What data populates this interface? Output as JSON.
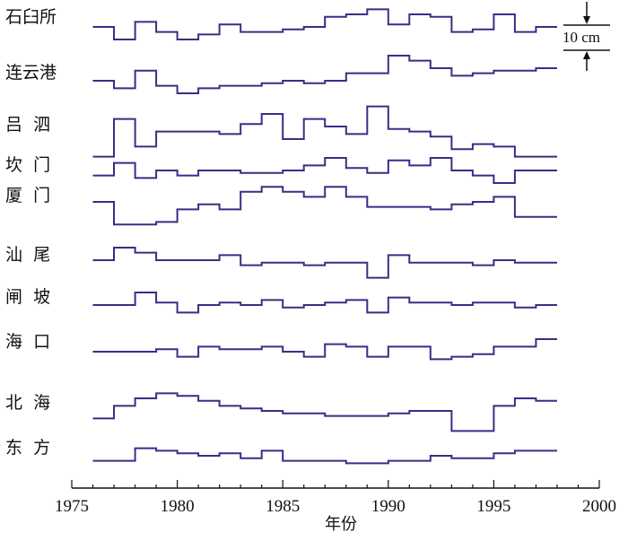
{
  "chart_data": {
    "type": "line",
    "step": true,
    "title": "",
    "xlabel": "年份",
    "ylabel": "",
    "xlim": [
      1975,
      2000
    ],
    "x_ticks": [
      "1975",
      "1980",
      "1985",
      "1990",
      "1995",
      "2000"
    ],
    "scale_bar": {
      "label": "10 cm",
      "value_cm": 10
    },
    "line_color": "#3f2a86",
    "y_units": "cm (relative anomaly, offset per station)",
    "years": [
      1976,
      1977,
      1978,
      1979,
      1980,
      1981,
      1982,
      1983,
      1984,
      1985,
      1986,
      1987,
      1988,
      1989,
      1990,
      1991,
      1992,
      1993,
      1994,
      1995,
      1996,
      1997
    ],
    "series": [
      {
        "name": "石臼所",
        "label": "石臼所",
        "values": [
          0,
          -5,
          2,
          -2,
          -5,
          -3,
          1,
          -2,
          -2,
          -1,
          0,
          4,
          5,
          7,
          1,
          5,
          4,
          -2,
          -1,
          5,
          -2,
          0
        ]
      },
      {
        "name": "连云港",
        "label": "连云港",
        "values": [
          0,
          -3,
          4,
          -2,
          -5,
          -3,
          -2,
          -2,
          -1,
          0,
          -1,
          0,
          3,
          3,
          10,
          8,
          5,
          2,
          3,
          4,
          4,
          5
        ]
      },
      {
        "name": "吕泗",
        "label": "吕  泗",
        "values": [
          -7,
          8,
          -3,
          3,
          3,
          3,
          2,
          6,
          10,
          0,
          8,
          5,
          2,
          13,
          4,
          3,
          1,
          -4,
          -2,
          -3,
          -7,
          -7
        ]
      },
      {
        "name": "坎门",
        "label": "坎  门",
        "values": [
          -2,
          3,
          -3,
          0,
          -2,
          0,
          0,
          -1,
          -1,
          0,
          2,
          5,
          1,
          -1,
          4,
          2,
          5,
          0,
          -2,
          -5,
          0,
          0
        ]
      },
      {
        "name": "厦门",
        "label": "厦  门",
        "values": [
          0,
          -9,
          -9,
          -8,
          -3,
          -1,
          -3,
          4,
          6,
          4,
          2,
          6,
          2,
          -2,
          -2,
          -2,
          -3,
          -1,
          0,
          2,
          -6,
          -6
        ]
      },
      {
        "name": "汕尾",
        "label": "汕  尾",
        "values": [
          0,
          5,
          3,
          0,
          0,
          0,
          2,
          -2,
          -1,
          -1,
          -2,
          -1,
          -1,
          -7,
          2,
          -1,
          -1,
          -1,
          -2,
          0,
          -1,
          -1
        ]
      },
      {
        "name": "闸坡",
        "label": "闸  坡",
        "values": [
          0,
          0,
          5,
          1,
          -3,
          0,
          1,
          0,
          2,
          -1,
          0,
          1,
          2,
          -3,
          3,
          1,
          1,
          0,
          1,
          1,
          -1,
          0
        ]
      },
      {
        "name": "海口",
        "label": "海  口",
        "values": [
          0,
          0,
          0,
          1,
          -2,
          2,
          1,
          1,
          2,
          0,
          -2,
          3,
          2,
          -2,
          2,
          2,
          -3,
          -2,
          -1,
          2,
          2,
          5
        ]
      },
      {
        "name": "北海",
        "label": "北  海",
        "values": [
          -3,
          2,
          5,
          7,
          6,
          4,
          2,
          1,
          0,
          -1,
          -1,
          -2,
          -2,
          -2,
          -1,
          0,
          0,
          -8,
          -8,
          2,
          5,
          4
        ]
      },
      {
        "name": "东方",
        "label": "东  方",
        "values": [
          -2,
          -2,
          3,
          2,
          1,
          0,
          1,
          -1,
          2,
          -2,
          -2,
          -2,
          -3,
          -3,
          -2,
          -2,
          0,
          -1,
          -1,
          1,
          2,
          2
        ]
      }
    ]
  }
}
